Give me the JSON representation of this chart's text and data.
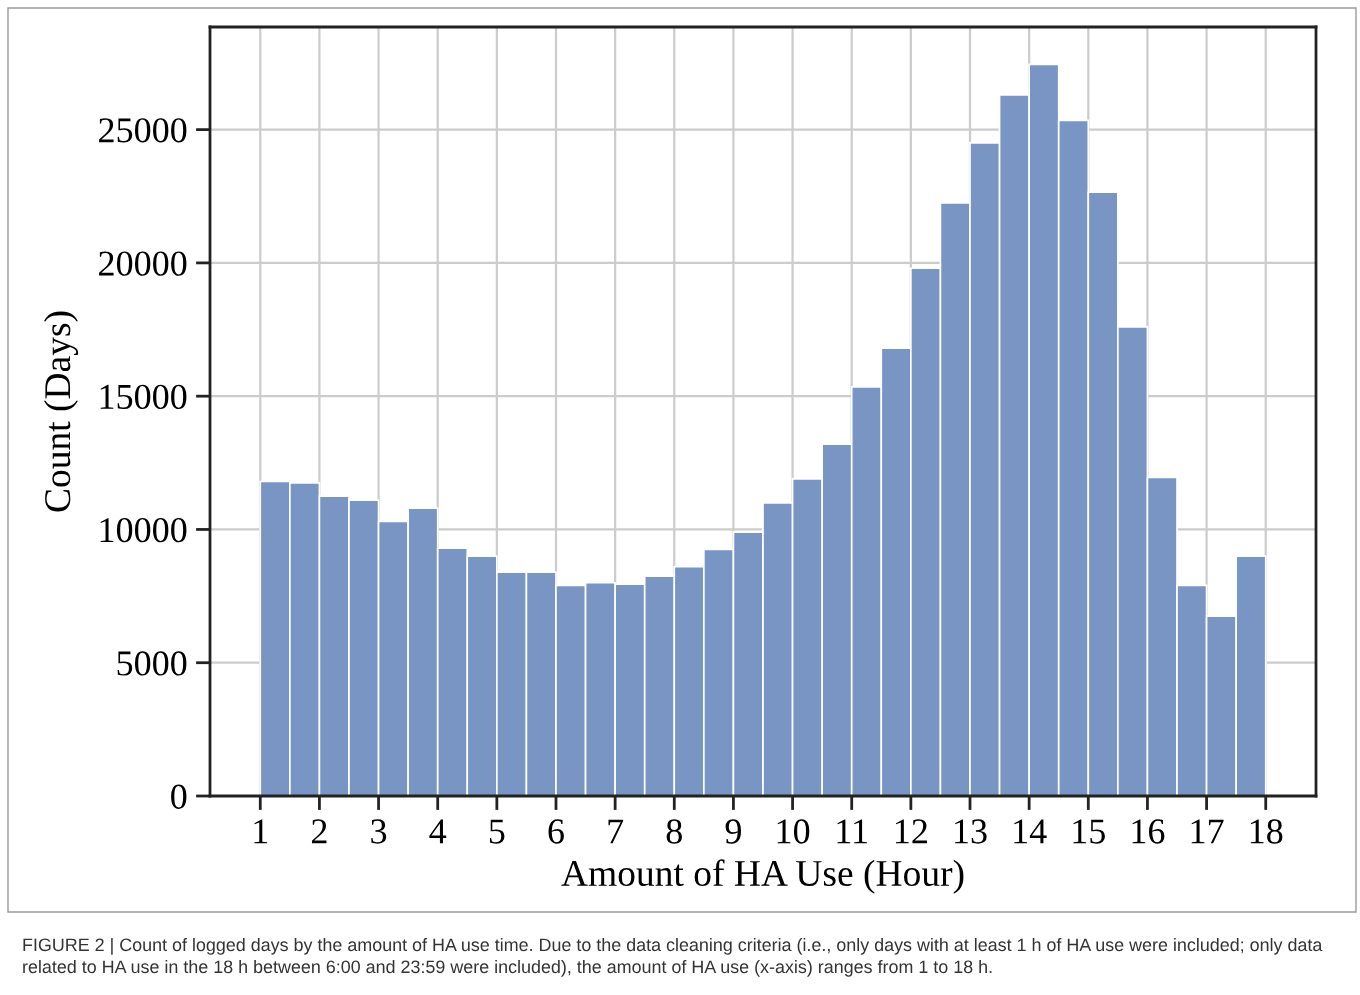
{
  "chart_data": {
    "type": "histogram",
    "xlabel": "Amount of HA Use (Hour)",
    "ylabel": "Count (Days)",
    "annotations": [
      "FIGURE 2 | Count of logged days by the amount of HA use time. Due to the data cleaning criteria (i.e., only days with at least 1 h of HA use were included; only data related to HA use in the 18 h between 6:00 and 23:59 were included), the amount of HA use (x-axis) ranges from 1 to 18 h."
    ],
    "bins": [
      1,
      1.5,
      2,
      2.5,
      3,
      3.5,
      4,
      4.5,
      5,
      5.5,
      6,
      6.5,
      7,
      7.5,
      8,
      8.5,
      9,
      9.5,
      10,
      10.5,
      11,
      11.5,
      12,
      12.5,
      13,
      13.5,
      14,
      14.5,
      15,
      15.5,
      16,
      16.5,
      17,
      17.5,
      18
    ],
    "values": [
      11800,
      11750,
      11250,
      11100,
      10300,
      10800,
      9300,
      9000,
      8400,
      8400,
      7900,
      8000,
      7950,
      8250,
      8600,
      9250,
      9900,
      11000,
      11900,
      13200,
      15350,
      16800,
      19800,
      22250,
      24500,
      26300,
      27450,
      25350,
      22650,
      17600,
      11950,
      7900,
      6750,
      9000
    ],
    "color": "#7995c4",
    "xlim": [
      0.15,
      18.85
    ],
    "xticks": [
      1,
      2,
      3,
      4,
      5,
      6,
      7,
      8,
      9,
      10,
      11,
      12,
      13,
      14,
      15,
      16,
      17,
      18
    ],
    "ylim": [
      0,
      28850
    ],
    "yticks": [
      0,
      5000,
      10000,
      15000,
      20000,
      25000
    ],
    "grid": true
  }
}
